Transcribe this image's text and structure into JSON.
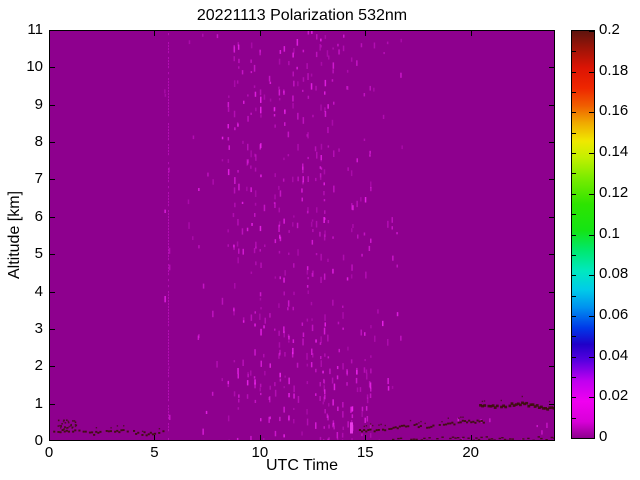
{
  "figure": {
    "title": "20221113 Polarization 532nm",
    "xlabel": "UTC Time",
    "ylabel": "Altitude [km]"
  },
  "chart_data": {
    "type": "heatmap",
    "title": "20221113 Polarization 532nm",
    "xlabel": "UTC Time",
    "ylabel": "Altitude [km]",
    "xlim": [
      0,
      24
    ],
    "ylim": [
      0,
      11
    ],
    "x_ticks": [
      0,
      5,
      10,
      15,
      20
    ],
    "x_tick_labels": [
      "0",
      "5",
      "10",
      "15",
      "20"
    ],
    "y_ticks": [
      0,
      1,
      2,
      3,
      4,
      5,
      6,
      7,
      8,
      9,
      10,
      11
    ],
    "y_tick_labels": [
      "0",
      "1",
      "2",
      "3",
      "4",
      "5",
      "6",
      "7",
      "8",
      "9",
      "10",
      "11"
    ],
    "grid": false,
    "background_value": 0,
    "background_color": "#8E008E",
    "colorbar": {
      "min": 0,
      "max": 0.2,
      "tick_values": [
        0,
        0.02,
        0.04,
        0.06,
        0.08,
        0.1,
        0.12,
        0.14,
        0.16,
        0.18,
        0.2
      ],
      "tick_labels": [
        "0",
        "0.02",
        "0.04",
        "0.06",
        "0.08",
        "0.1",
        "0.12",
        "0.14",
        "0.16",
        "0.18",
        "0.2"
      ],
      "position": "right",
      "colormap_stops": [
        {
          "v": 0.0,
          "c": "#8E008E"
        },
        {
          "v": 0.008,
          "c": "#D800D8"
        },
        {
          "v": 0.018,
          "c": "#F000F0"
        },
        {
          "v": 0.028,
          "c": "#C000F0"
        },
        {
          "v": 0.038,
          "c": "#5800E0"
        },
        {
          "v": 0.046,
          "c": "#2000C8"
        },
        {
          "v": 0.054,
          "c": "#0038E8"
        },
        {
          "v": 0.064,
          "c": "#0090F0"
        },
        {
          "v": 0.073,
          "c": "#00CCE8"
        },
        {
          "v": 0.082,
          "c": "#00E8C0"
        },
        {
          "v": 0.092,
          "c": "#00E870"
        },
        {
          "v": 0.102,
          "c": "#14E414"
        },
        {
          "v": 0.115,
          "c": "#2EE400"
        },
        {
          "v": 0.128,
          "c": "#7CEC00"
        },
        {
          "v": 0.138,
          "c": "#C4F000"
        },
        {
          "v": 0.146,
          "c": "#F0E800"
        },
        {
          "v": 0.155,
          "c": "#F0A800"
        },
        {
          "v": 0.163,
          "c": "#F06000"
        },
        {
          "v": 0.172,
          "c": "#EE2600"
        },
        {
          "v": 0.182,
          "c": "#DC1404"
        },
        {
          "v": 0.192,
          "c": "#9A1408"
        },
        {
          "v": 0.2,
          "c": "#5E140E"
        }
      ]
    },
    "features": {
      "description": "Depolarization mostly ~0 (magenta background). Bright magenta noise streak columns between ~06-17 UTC; thin high-depolarization (~0.2, dark red) aerosol layers near the surface.",
      "streak_color": "#FF2CFF",
      "layer_color": "#3A1007",
      "vertical_line_x": 5.65,
      "streak_bands": [
        {
          "x_range": [
            5.45,
            5.85
          ],
          "alt_range": [
            0,
            11
          ],
          "density": 0.1
        },
        {
          "x_range": [
            6.6,
            8.5
          ],
          "alt_range": [
            0,
            11
          ],
          "density": 0.08
        },
        {
          "x_range": [
            8.5,
            13.2
          ],
          "alt_range": [
            0,
            11
          ],
          "density": 0.5
        },
        {
          "x_range": [
            13.2,
            15.2
          ],
          "alt_range": [
            0,
            11
          ],
          "density": 0.3
        },
        {
          "x_range": [
            15.2,
            16.8
          ],
          "alt_range": [
            0,
            11
          ],
          "density": 0.1
        },
        {
          "x_range": [
            13.0,
            15.3
          ],
          "alt_range": [
            0,
            2.2
          ],
          "density": 0.6
        },
        {
          "x_range": [
            17.0,
            24.0
          ],
          "alt_range": [
            0,
            0.9
          ],
          "density": 0.16
        }
      ],
      "depol_layers": [
        {
          "type": "speckle-line",
          "x_range": [
            0.2,
            5.4
          ],
          "alt_start": 0.27,
          "alt_end": 0.25,
          "value": 0.2,
          "strength": 1.0
        },
        {
          "type": "speckle-cloud",
          "x_range": [
            0.25,
            1.35
          ],
          "alt_range": [
            0.32,
            0.58
          ],
          "value": 0.2
        },
        {
          "type": "speckle-line",
          "x_range": [
            14.7,
            20.6
          ],
          "alt_start": 0.3,
          "alt_end": 0.55,
          "value": 0.2,
          "strength": 1.0
        },
        {
          "type": "speckle-line",
          "x_range": [
            20.4,
            24.0
          ],
          "alt_start": 1.02,
          "alt_end": 0.95,
          "value": 0.2,
          "strength": 1.35
        },
        {
          "type": "dotted-band",
          "x_range": [
            15.9,
            24.0
          ],
          "alt_range": [
            0.03,
            0.13
          ],
          "value": 0.2
        }
      ],
      "bright_spot": {
        "x": 14.35,
        "alt_range": [
          0.2,
          0.5
        ],
        "color": "#F040F0"
      }
    }
  }
}
